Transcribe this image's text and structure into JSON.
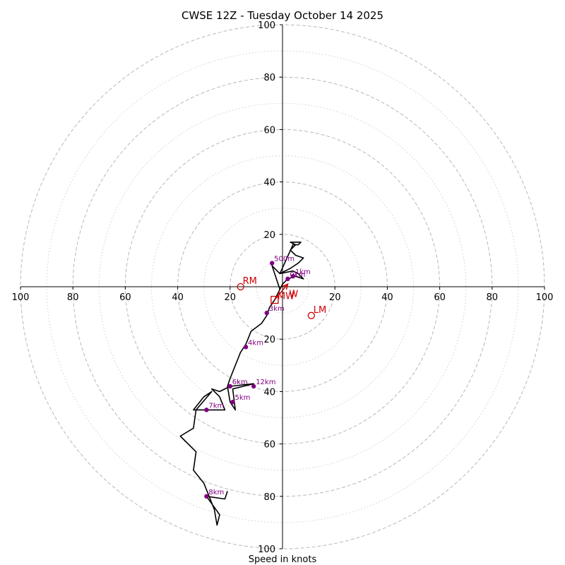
{
  "chart_data": {
    "type": "hodograph",
    "title": "CWSE 12Z - Tuesday October 14 2025",
    "xlabel": "Speed in knots",
    "axis_range": [
      -100,
      100
    ],
    "ring_major_values": [
      20,
      40,
      60,
      80,
      100
    ],
    "ring_minor_values": [
      10,
      30,
      50,
      70,
      90
    ],
    "tick_labels": {
      "x_left": [
        "100",
        "80",
        "60",
        "40",
        "20"
      ],
      "x_right": [
        "20",
        "40",
        "60",
        "80",
        "100"
      ],
      "y_up": [
        "20",
        "40",
        "60",
        "80",
        "100"
      ],
      "y_down": [
        "20",
        "40",
        "60",
        "80",
        "100"
      ]
    },
    "hodograph_trace": [
      [
        -1,
        -1
      ],
      [
        0,
        1
      ],
      [
        2,
        3
      ],
      [
        5,
        4
      ],
      [
        8,
        3
      ],
      [
        6,
        5
      ],
      [
        4,
        6
      ],
      [
        -1,
        5
      ],
      [
        3,
        7
      ],
      [
        6,
        9
      ],
      [
        8,
        11
      ],
      [
        5,
        12
      ],
      [
        3,
        14
      ],
      [
        5,
        16
      ],
      [
        3,
        17
      ],
      [
        7,
        17
      ],
      [
        6,
        16
      ],
      [
        4,
        16
      ],
      [
        -1,
        5
      ],
      [
        -4,
        8
      ],
      [
        -1,
        -1
      ],
      [
        -3,
        -5
      ],
      [
        -5,
        -8
      ],
      [
        -6,
        -11
      ],
      [
        -8,
        -14
      ],
      [
        -12,
        -17
      ],
      [
        -14,
        -22
      ],
      [
        -16,
        -25
      ],
      [
        -18,
        -30
      ],
      [
        -20,
        -35
      ],
      [
        -21,
        -38
      ],
      [
        -20,
        -44
      ],
      [
        -18,
        -47
      ],
      [
        -19,
        -39
      ],
      [
        -15,
        -38
      ],
      [
        -11,
        -37
      ],
      [
        -20,
        -38
      ],
      [
        -24,
        -40
      ],
      [
        -27,
        -39
      ],
      [
        -24,
        -42
      ],
      [
        -22,
        -47
      ],
      [
        -29,
        -47
      ],
      [
        -34,
        -47
      ],
      [
        -30,
        -42
      ],
      [
        -27,
        -40
      ],
      [
        -33,
        -47
      ],
      [
        -34,
        -54
      ],
      [
        -39,
        -57
      ],
      [
        -33,
        -63
      ],
      [
        -34,
        -70
      ],
      [
        -30,
        -75
      ],
      [
        -28,
        -80
      ],
      [
        -26,
        -85
      ],
      [
        -25,
        -91
      ],
      [
        -24,
        -87
      ],
      [
        -29,
        -80
      ],
      [
        -22,
        -81
      ],
      [
        -21,
        -78
      ]
    ],
    "height_markers": [
      {
        "label": "1km",
        "u": 4,
        "v": 4,
        "color": "#800080"
      },
      {
        "label": "0km",
        "u": 2,
        "v": 3,
        "color": "#800080"
      },
      {
        "label": "500m",
        "u": -4,
        "v": 9,
        "color": "#800080"
      },
      {
        "label": "3km",
        "u": -6,
        "v": -10,
        "color": "#800080"
      },
      {
        "label": "4km",
        "u": -14,
        "v": -23,
        "color": "#800080"
      },
      {
        "label": "6km",
        "u": -20,
        "v": -38,
        "color": "#800080"
      },
      {
        "label": "12km",
        "u": -11,
        "v": -38,
        "color": "#800080"
      },
      {
        "label": "5km",
        "u": -19,
        "v": -44,
        "color": "#800080"
      },
      {
        "label": "7km",
        "u": -29,
        "v": -47,
        "color": "#800080"
      },
      {
        "label": "8km",
        "u": -29,
        "v": -80,
        "color": "#800080"
      }
    ],
    "storm_motions": [
      {
        "label": "RM",
        "u": -16,
        "v": 0,
        "symbol": "circle",
        "color": "#cc0000"
      },
      {
        "label": "LM",
        "u": 11,
        "v": -11,
        "symbol": "circle",
        "color": "#cc0000"
      },
      {
        "label": "MW",
        "u": -3,
        "v": -5,
        "symbol": "square",
        "color": "#cc0000"
      }
    ],
    "arrow": {
      "from": [
        -3,
        -5
      ],
      "to": [
        2,
        1
      ],
      "color": "#cc0000",
      "label": "W"
    },
    "colors": {
      "trace": "#000000",
      "markers": "#800080",
      "storm": "#cc0000",
      "rings": "#b8b8b8",
      "axes": "#000000"
    }
  }
}
